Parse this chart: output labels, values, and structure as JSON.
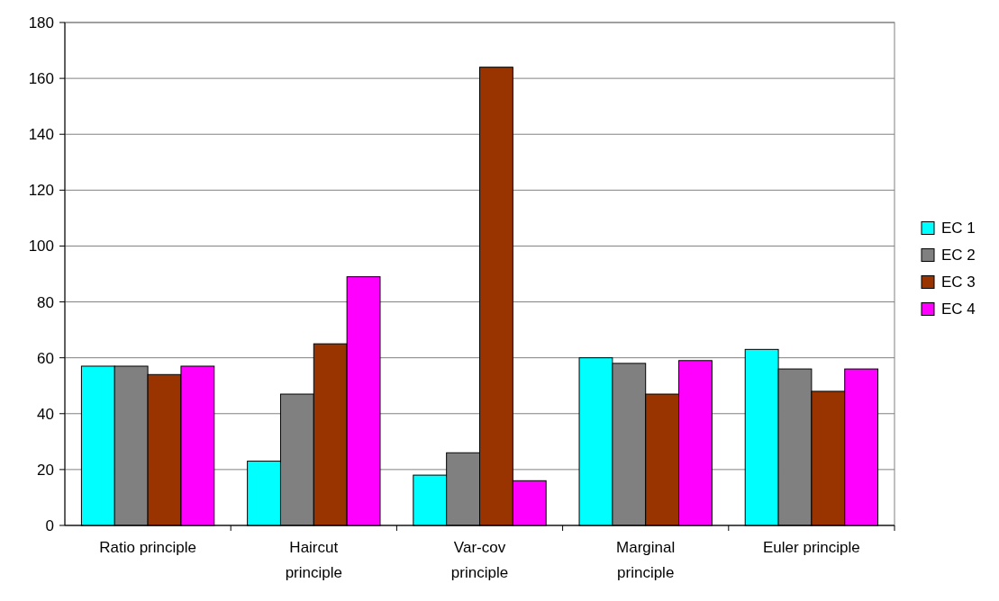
{
  "chart_data": {
    "type": "bar",
    "categories": [
      "Ratio principle",
      "Haircut principle",
      "Var-cov principle",
      "Marginal principle",
      "Euler principle"
    ],
    "series": [
      {
        "name": "EC 1",
        "color": "#00ffff",
        "values": [
          57,
          23,
          18,
          60,
          63
        ]
      },
      {
        "name": "EC 2",
        "color": "#808080",
        "values": [
          57,
          47,
          26,
          58,
          56
        ]
      },
      {
        "name": "EC 3",
        "color": "#993300",
        "values": [
          54,
          65,
          164,
          47,
          48
        ]
      },
      {
        "name": "EC 4",
        "color": "#ff00ff",
        "values": [
          57,
          89,
          16,
          59,
          56
        ]
      }
    ],
    "ylim": [
      0,
      180
    ],
    "yticks": [
      0,
      20,
      40,
      60,
      80,
      100,
      120,
      140,
      160,
      180
    ],
    "grid": "y",
    "legend": "right"
  }
}
